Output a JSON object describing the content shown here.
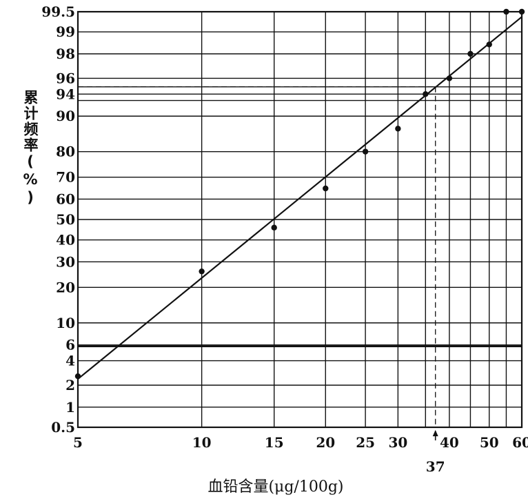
{
  "chart_data": {
    "type": "scatter",
    "x_scale": "log",
    "y_scale": "probability",
    "xlabel": "血铅含量(μg/100g)",
    "ylabel": "累计频率(%)",
    "xlim": [
      5,
      60
    ],
    "ylim": [
      0.5,
      99.5
    ],
    "x_ticks": [
      5,
      10,
      15,
      20,
      25,
      30,
      40,
      50,
      60
    ],
    "x_minor_lines": [
      35,
      45,
      55
    ],
    "y_ticks": [
      0.5,
      1,
      2,
      4,
      6,
      10,
      20,
      30,
      40,
      50,
      60,
      70,
      80,
      90,
      94,
      96,
      98,
      99,
      99.5
    ],
    "y_extra_lines": [
      95,
      93
    ],
    "grid": true,
    "series": [
      {
        "points": [
          {
            "x": 5,
            "y": 2.6
          },
          {
            "x": 10,
            "y": 26
          },
          {
            "x": 15,
            "y": 46
          },
          {
            "x": 20,
            "y": 65
          },
          {
            "x": 25,
            "y": 80
          },
          {
            "x": 30,
            "y": 87
          },
          {
            "x": 35,
            "y": 94
          },
          {
            "x": 40,
            "y": 96
          },
          {
            "x": 45,
            "y": 98
          },
          {
            "x": 50,
            "y": 98.5
          },
          {
            "x": 55,
            "y": 99.5
          },
          {
            "x": 60,
            "y": 99.5
          }
        ]
      }
    ],
    "fit_line": {
      "from": {
        "x": 5,
        "y": 2.4
      },
      "to": {
        "x": 60,
        "y": 99.4
      }
    },
    "reference": {
      "y": 95,
      "x": 37,
      "x_label": "37"
    }
  }
}
